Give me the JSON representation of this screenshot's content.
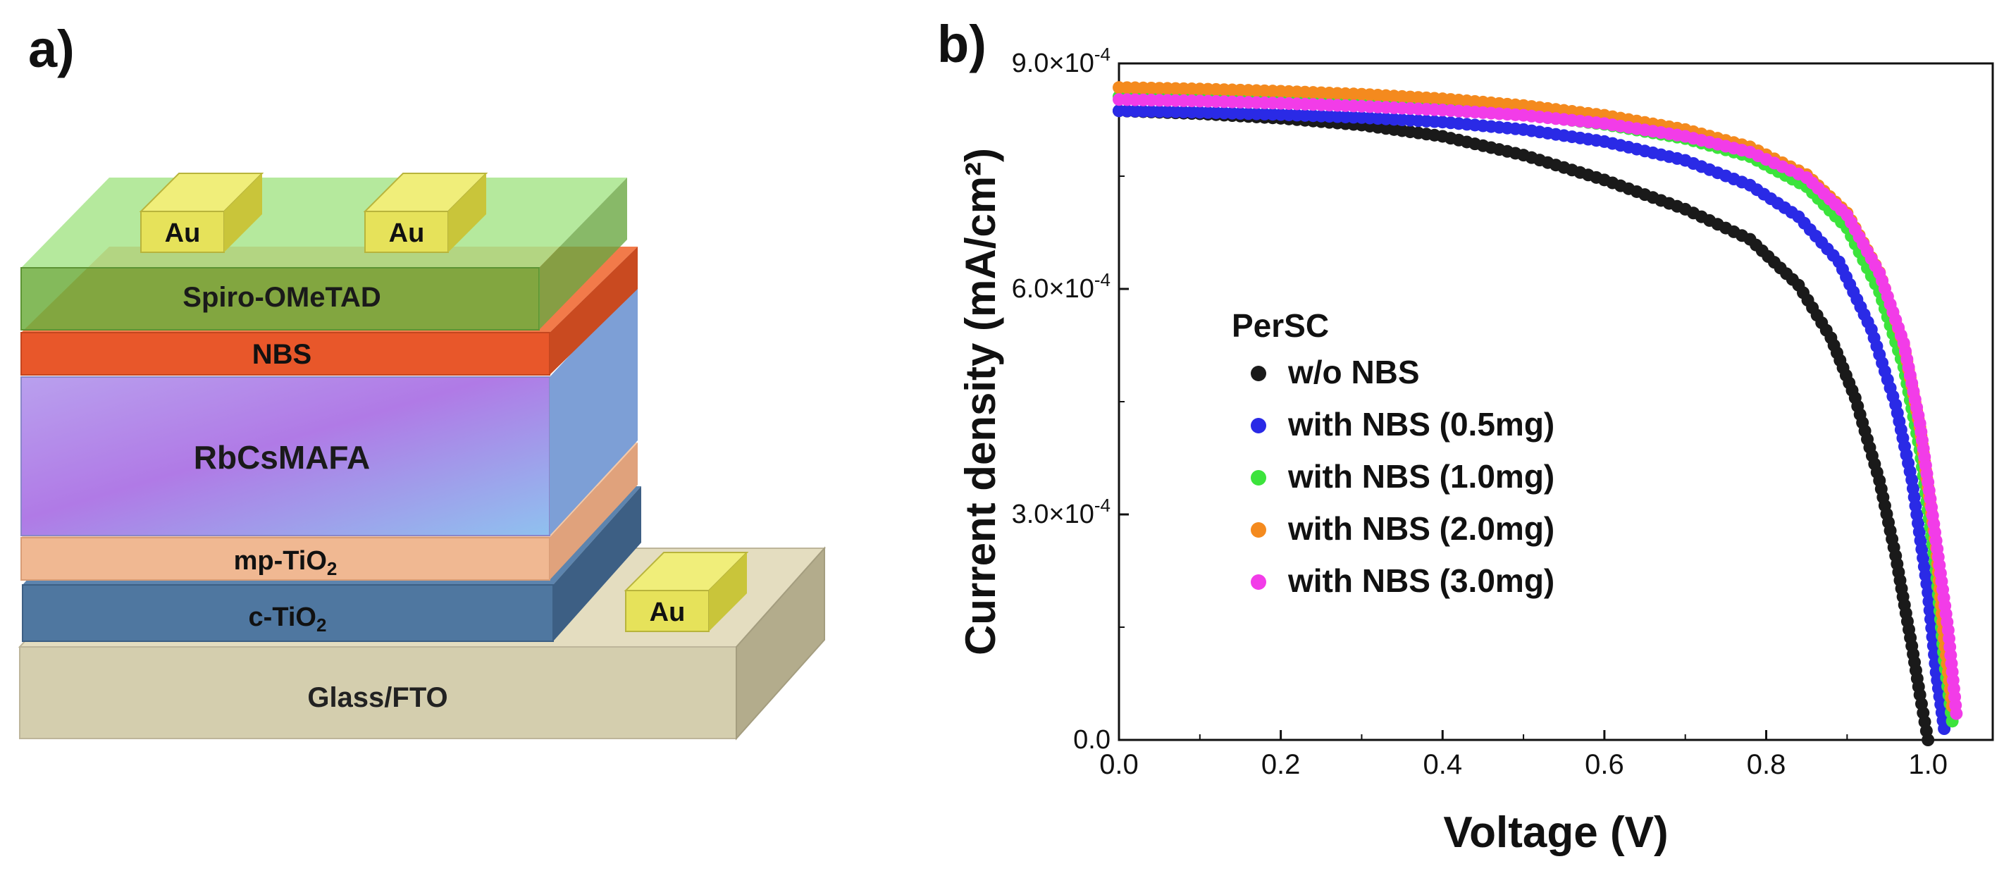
{
  "panels": {
    "a_label": "a)",
    "b_label": "b)"
  },
  "device": {
    "layers": {
      "spiro": "Spiro-OMeTAD",
      "nbs": "NBS",
      "perovskite": "RbCsMAFA",
      "mp_tio2_prefix": "mp-TiO",
      "c_tio2_prefix": "c-TiO",
      "tio2_subscript": "2",
      "substrate": "Glass/FTO"
    },
    "electrode_label": "Au",
    "colors": {
      "spiro": "#8ed96b",
      "nbs": "#e8572a",
      "perovskite_a": "#a97be8",
      "perovskite_b": "#8fb7ef",
      "mp_tio2": "#f2b48e",
      "c_tio2": "#4a6e96",
      "substrate": "#d5cfb0",
      "electrode": "#e6e25a"
    }
  },
  "chart_data": {
    "type": "scatter",
    "xlabel": "Voltage (V)",
    "ylabel": "Current density (mA/cm²)",
    "xlim": [
      0.0,
      1.08
    ],
    "ylim": [
      0.0,
      0.0009
    ],
    "xticks": [
      0.0,
      0.2,
      0.4,
      0.6,
      0.8,
      1.0
    ],
    "xtick_labels": [
      "0.0",
      "0.2",
      "0.4",
      "0.6",
      "0.8",
      "1.0"
    ],
    "yticks": [
      0.0,
      0.0003,
      0.0006,
      0.0009
    ],
    "ytick_labels": [
      {
        "mantissa": "0.0",
        "exponent": ""
      },
      {
        "mantissa": "3.0×10",
        "exponent": "-4"
      },
      {
        "mantissa": "6.0×10",
        "exponent": "-4"
      },
      {
        "mantissa": "9.0×10",
        "exponent": "-4"
      }
    ],
    "legend_title": "PerSC",
    "legend_position": "center-left",
    "grid": false,
    "series": [
      {
        "name": "w/o NBS",
        "color": "#1a1a1a",
        "x": [
          0.0,
          0.1,
          0.2,
          0.3,
          0.4,
          0.5,
          0.6,
          0.7,
          0.78,
          0.84,
          0.88,
          0.91,
          0.94,
          0.96,
          0.98,
          0.99,
          1.0
        ],
        "y": [
          0.000837,
          0.000833,
          0.000827,
          0.000818,
          0.000803,
          0.000778,
          0.000745,
          0.000706,
          0.000666,
          0.000605,
          0.000535,
          0.000455,
          0.000345,
          0.000245,
          0.000125,
          6e-05,
          0.0
        ]
      },
      {
        "name": "with NBS (0.5mg)",
        "color": "#2a2ae6",
        "x": [
          0.0,
          0.1,
          0.2,
          0.3,
          0.4,
          0.5,
          0.6,
          0.7,
          0.78,
          0.84,
          0.89,
          0.93,
          0.96,
          0.98,
          1.0,
          1.01,
          1.02
        ],
        "y": [
          0.000837,
          0.000835,
          0.000832,
          0.000828,
          0.000822,
          0.000812,
          0.000796,
          0.000771,
          0.000738,
          0.000696,
          0.000636,
          0.000546,
          0.000446,
          0.000346,
          0.000196,
          9e-05,
          1.5e-05
        ]
      },
      {
        "name": "with NBS (1.0mg)",
        "color": "#3ce33c",
        "x": [
          0.0,
          0.1,
          0.2,
          0.3,
          0.4,
          0.5,
          0.6,
          0.7,
          0.78,
          0.85,
          0.9,
          0.94,
          0.97,
          0.99,
          1.01,
          1.02,
          1.03
        ],
        "y": [
          0.000856,
          0.000854,
          0.000851,
          0.000847,
          0.000841,
          0.000832,
          0.000819,
          0.0008,
          0.000776,
          0.000736,
          0.000681,
          0.000596,
          0.000496,
          0.000386,
          0.000226,
          0.000106,
          2.5e-05
        ]
      },
      {
        "name": "with NBS (2.0mg)",
        "color": "#f48a1e",
        "x": [
          0.0,
          0.1,
          0.2,
          0.3,
          0.4,
          0.5,
          0.6,
          0.7,
          0.78,
          0.85,
          0.9,
          0.94,
          0.97,
          0.99,
          1.01,
          1.02,
          1.03
        ],
        "y": [
          0.000868,
          0.000866,
          0.000863,
          0.000859,
          0.000853,
          0.000844,
          0.000831,
          0.000812,
          0.000789,
          0.000752,
          0.000701,
          0.000622,
          0.000526,
          0.000416,
          0.000256,
          0.000135,
          4.5e-05
        ]
      },
      {
        "name": "with NBS (3.0mg)",
        "color": "#f23ce8",
        "x": [
          0.0,
          0.1,
          0.2,
          0.3,
          0.4,
          0.5,
          0.6,
          0.7,
          0.78,
          0.85,
          0.9,
          0.94,
          0.97,
          0.99,
          1.01,
          1.025,
          1.035
        ],
        "y": [
          0.000852,
          0.00085,
          0.000847,
          0.000843,
          0.000838,
          0.000831,
          0.00082,
          0.000803,
          0.000782,
          0.000748,
          0.000698,
          0.000621,
          0.000528,
          0.000421,
          0.000265,
          0.000146,
          3.5e-05
        ]
      }
    ]
  }
}
